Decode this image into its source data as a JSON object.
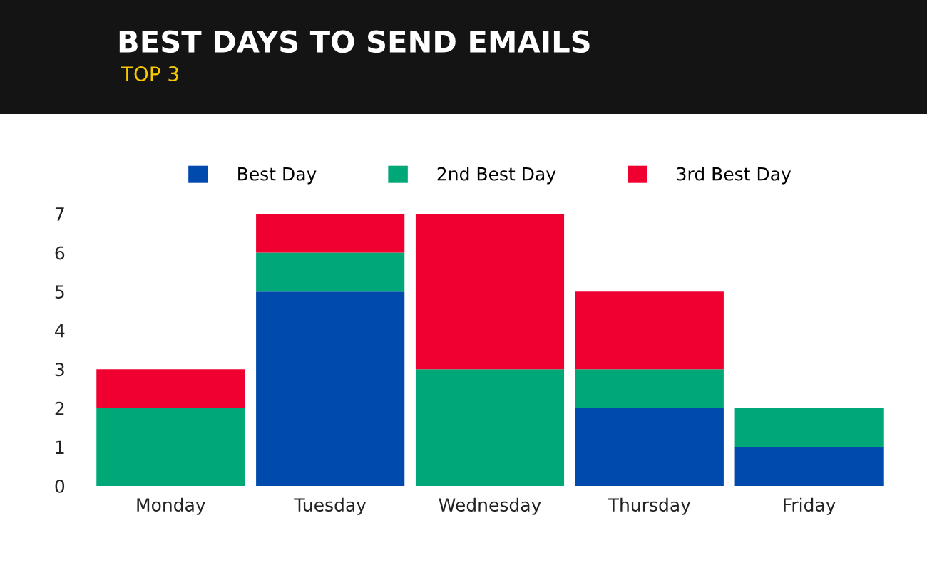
{
  "chart_data": {
    "type": "bar",
    "title": "BEST DAYS TO SEND EMAILS",
    "subtitle": "TOP 3",
    "categories": [
      "Monday",
      "Tuesday",
      "Wednesday",
      "Thursday",
      "Friday"
    ],
    "series": [
      {
        "name": "Best Day",
        "color": "#004aad",
        "values": [
          0,
          5,
          0,
          2,
          1
        ]
      },
      {
        "name": "2nd Best Day",
        "color": "#00a878",
        "values": [
          2,
          1,
          3,
          1,
          1
        ]
      },
      {
        "name": "3rd Best Day",
        "color": "#ef0031",
        "values": [
          1,
          1,
          4,
          2,
          0
        ]
      }
    ],
    "stacked": true,
    "ylim": [
      0,
      7
    ],
    "yticks": [
      0,
      1,
      2,
      3,
      4,
      5,
      6,
      7
    ],
    "grid": false,
    "legend": "top"
  }
}
